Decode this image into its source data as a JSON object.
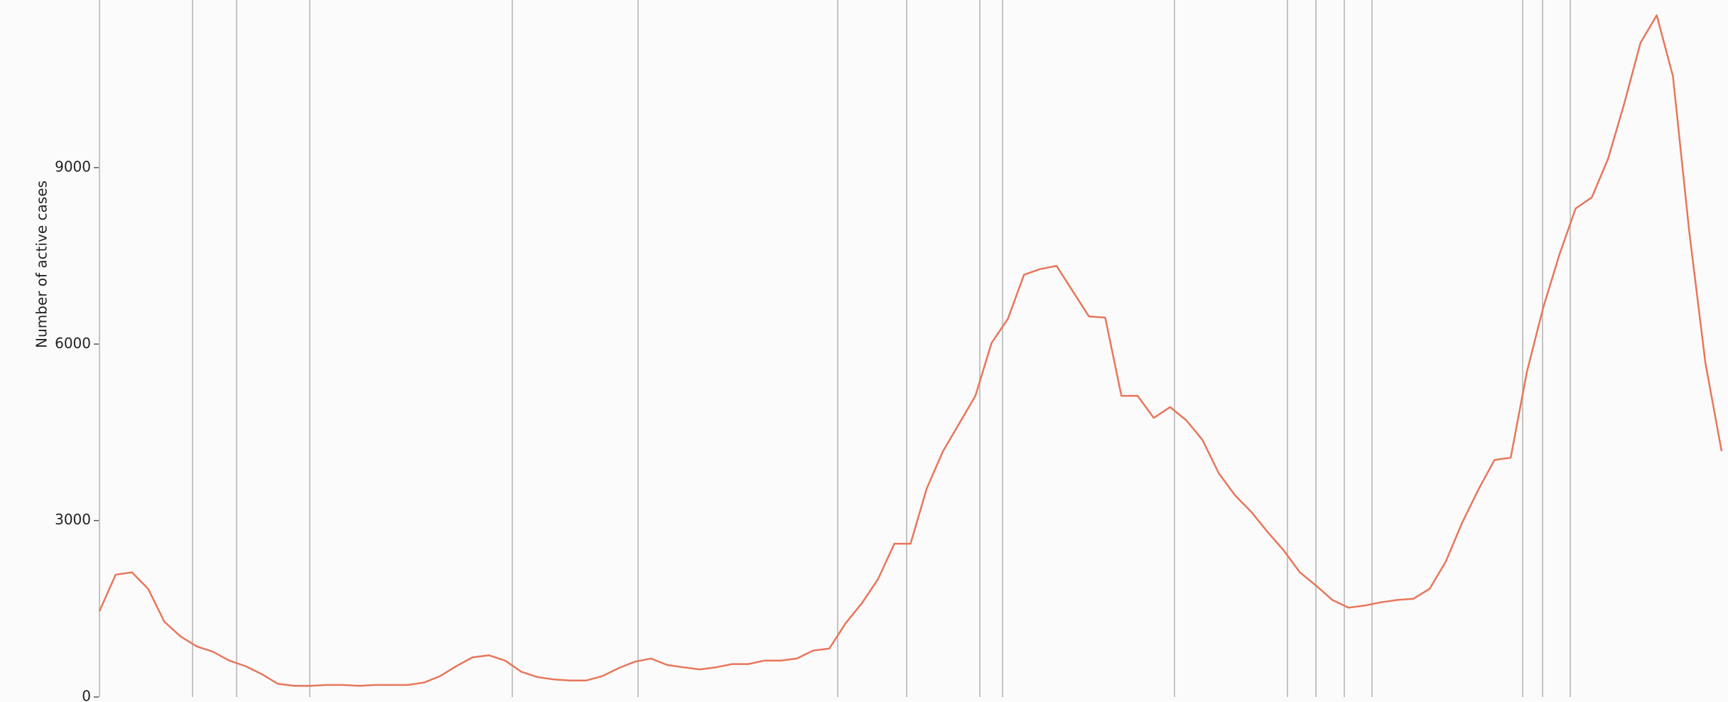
{
  "chart_data": {
    "type": "line",
    "y_label": "Number of active cases",
    "ylim": [
      0,
      11850
    ],
    "yticks": [
      0,
      3000,
      6000,
      9000
    ],
    "color": "#e8765a",
    "values": [
      1460,
      2080,
      2120,
      1840,
      1280,
      1030,
      860,
      770,
      620,
      525,
      390,
      225,
      190,
      190,
      205,
      205,
      190,
      205,
      205,
      205,
      245,
      355,
      525,
      675,
      710,
      620,
      430,
      340,
      300,
      280,
      280,
      355,
      490,
      600,
      655,
      545,
      505,
      470,
      505,
      560,
      560,
      620,
      620,
      655,
      790,
      825,
      1255,
      1595,
      2005,
      2605,
      2605,
      3545,
      4180,
      4650,
      5120,
      6020,
      6430,
      7180,
      7275,
      7330,
      6900,
      6470,
      6450,
      5120,
      5120,
      4745,
      4930,
      4705,
      4370,
      3805,
      3430,
      3150,
      2810,
      2495,
      2120,
      1895,
      1650,
      1520,
      1555,
      1610,
      1650,
      1670,
      1840,
      2305,
      2960,
      3525,
      4030,
      4070,
      5530,
      6620,
      7520,
      8305,
      8495,
      9150,
      10090,
      11120,
      11590,
      10555,
      7930,
      5680,
      4180
    ]
  }
}
